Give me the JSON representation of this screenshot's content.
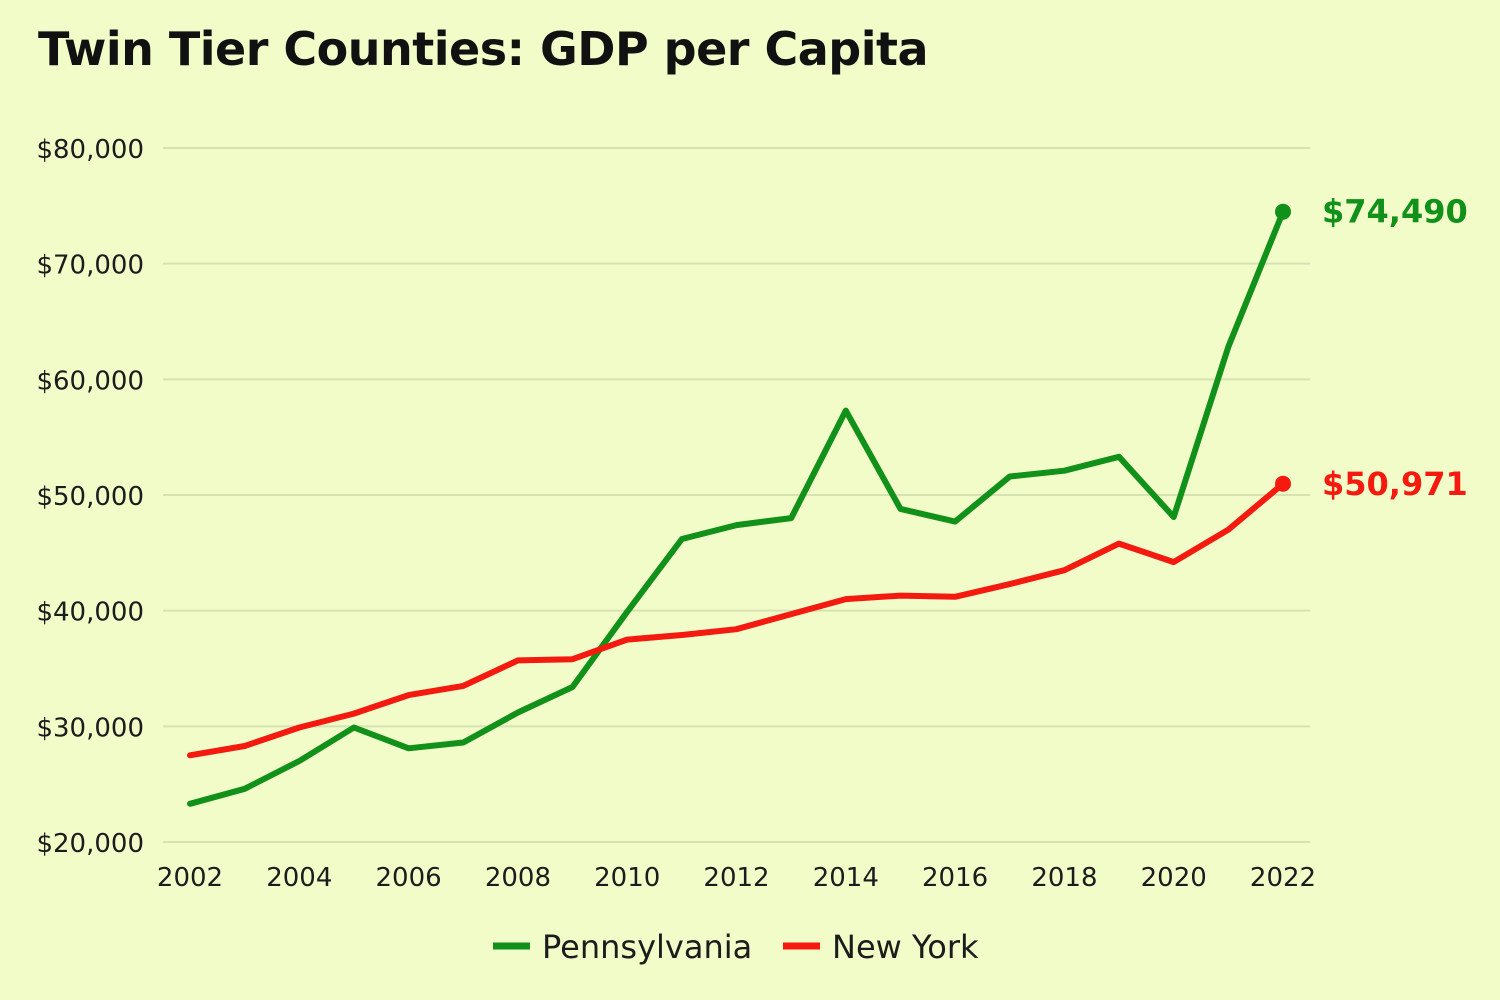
{
  "chart_data": {
    "type": "line",
    "title": "Twin Tier Counties: GDP per Capita",
    "xlabel": "",
    "ylabel": "",
    "x": [
      2002,
      2003,
      2004,
      2005,
      2006,
      2007,
      2008,
      2009,
      2010,
      2011,
      2012,
      2013,
      2014,
      2015,
      2016,
      2017,
      2018,
      2019,
      2020,
      2021,
      2022
    ],
    "xticks": [
      "2002",
      "2004",
      "2006",
      "2008",
      "2010",
      "2012",
      "2014",
      "2016",
      "2018",
      "2020",
      "2022"
    ],
    "yticks": [
      "$20,000",
      "$30,000",
      "$40,000",
      "$50,000",
      "$60,000",
      "$70,000",
      "$80,000"
    ],
    "ylim": [
      20000,
      80000
    ],
    "grid": true,
    "legend_position": "bottom-center",
    "series": [
      {
        "name": "Pennsylvania",
        "color": "#11901a",
        "values": [
          23300,
          24600,
          27000,
          29900,
          28100,
          28600,
          31200,
          33400,
          39900,
          46200,
          47400,
          48000,
          57300,
          48800,
          47700,
          51600,
          52100,
          53300,
          48100,
          62800,
          74490
        ],
        "end_label": "$74,490"
      },
      {
        "name": "New York",
        "color": "#f51a0f",
        "values": [
          27500,
          28300,
          29900,
          31100,
          32700,
          33500,
          35700,
          35800,
          37500,
          37900,
          38400,
          39700,
          41000,
          41300,
          41200,
          42300,
          43500,
          45800,
          44200,
          47000,
          50971
        ],
        "end_label": "$50,971"
      }
    ]
  }
}
